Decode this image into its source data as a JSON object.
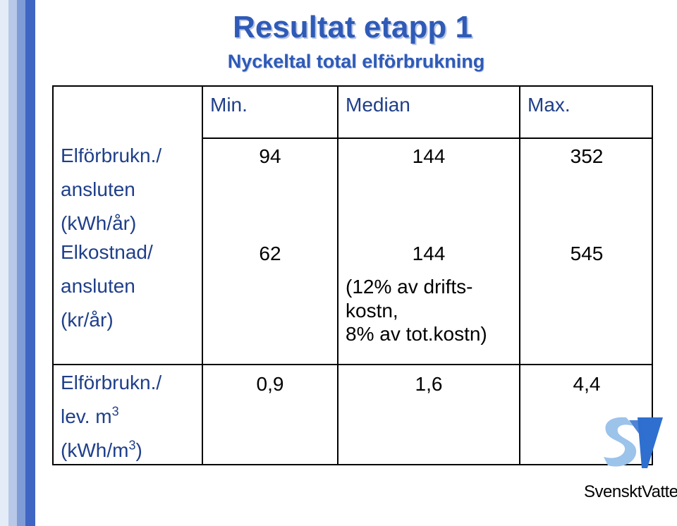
{
  "slide": {
    "title": "Resultat etapp 1",
    "subtitle": "Nyckeltal total elförbrukning"
  },
  "table": {
    "headers": {
      "min": "Min.",
      "median": "Median",
      "max": "Max."
    },
    "rows": [
      {
        "label_lines": [
          "Elförbrukn./",
          "ansluten",
          "(kWh/år)"
        ],
        "min": "94",
        "median": "144",
        "max": "352"
      },
      {
        "label_lines": [
          "Elkostnad/",
          "ansluten",
          "(kr/år)"
        ],
        "min": "62",
        "median": "144",
        "median_note": "(12% av drifts-\nkostn,\n8% av tot.kostn)",
        "max": "545"
      },
      {
        "label_lines": [
          "Elförbrukn./",
          "lev. m",
          "3",
          "(kWh/m",
          "3",
          ")"
        ],
        "min": "0,9",
        "median": "1,6",
        "max": "4,4"
      }
    ]
  },
  "logo": {
    "text": "SvensktVatten"
  },
  "colors": {
    "title": "#2f5bb7",
    "label": "#1f3f8a",
    "stripe": "#3f66c2",
    "logo_blue": "#2f6fcf"
  }
}
